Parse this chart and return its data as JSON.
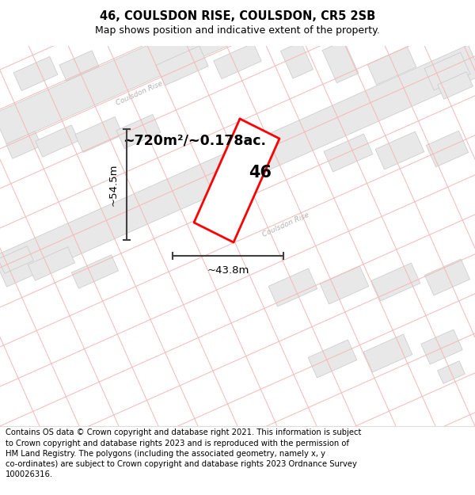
{
  "title_line1": "46, COULSDON RISE, COULSDON, CR5 2SB",
  "title_line2": "Map shows position and indicative extent of the property.",
  "footer_text": "Contains OS data © Crown copyright and database right 2021. This information is subject to Crown copyright and database rights 2023 and is reproduced with the permission of HM Land Registry. The polygons (including the associated geometry, namely x, y co-ordinates) are subject to Crown copyright and database rights 2023 Ordnance Survey 100026316.",
  "area_label": "~720m²/~0.178ac.",
  "number_label": "46",
  "width_label": "~43.8m",
  "height_label": "~54.5m",
  "map_bg": "#f8f8f8",
  "building_fill": "#e8e8e8",
  "building_edge": "#c8c8c8",
  "road_fill": "#ebebeb",
  "road_edge": "#c0c0c0",
  "property_color": "#ff0000",
  "red_line_color": "#f5b8b8",
  "road_label_color": "#b0b0b0",
  "dim_line_color": "#404040"
}
